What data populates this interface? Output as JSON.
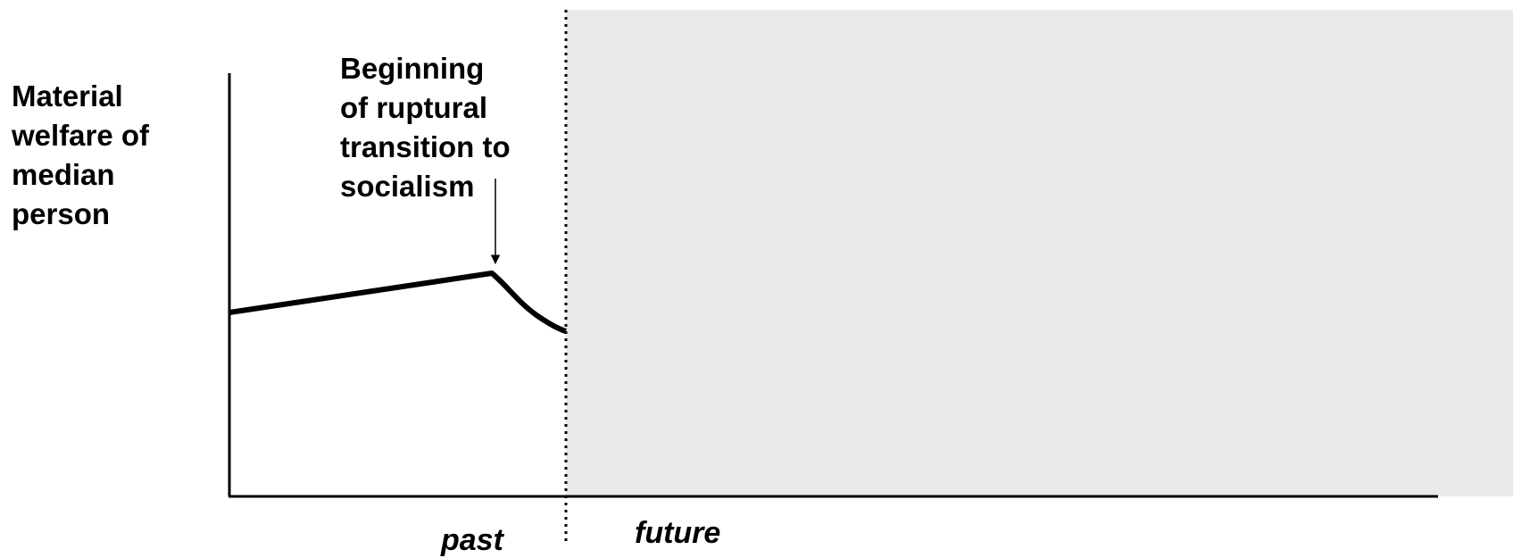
{
  "diagram": {
    "y_axis_label_lines": [
      "Material",
      "welfare of",
      "median",
      "person"
    ],
    "annotation_lines": [
      "Beginning",
      "of ruptural",
      "transition to",
      "socialism"
    ],
    "past_label": "past",
    "future_label": "future",
    "future_region_color": "#e9e9e9",
    "line_color": "#000000"
  }
}
